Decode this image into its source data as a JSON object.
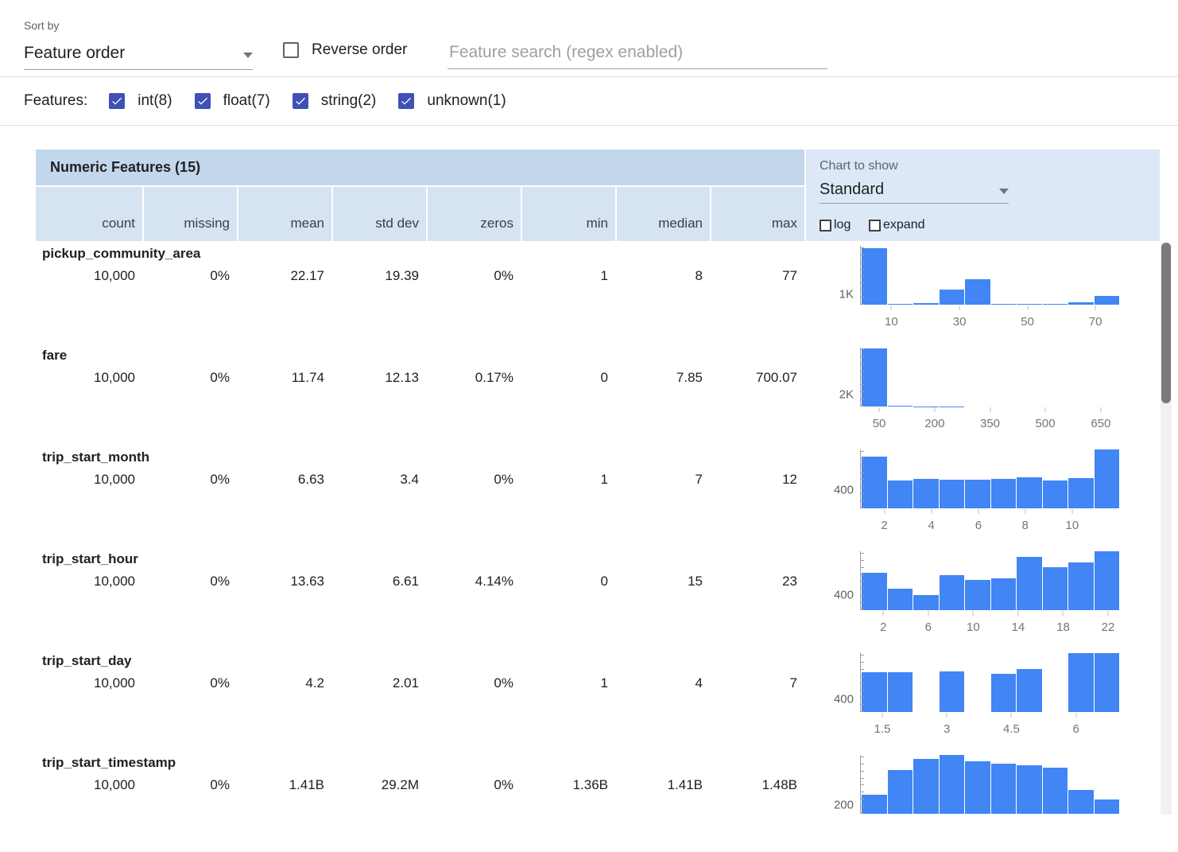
{
  "toolbar": {
    "sort_by_label": "Sort by",
    "sort_value": "Feature order",
    "reverse_label": "Reverse order",
    "search_placeholder": "Feature search (regex enabled)"
  },
  "features_bar": {
    "label": "Features:",
    "checkboxes": [
      {
        "label": "int(8)",
        "checked": true
      },
      {
        "label": "float(7)",
        "checked": true
      },
      {
        "label": "string(2)",
        "checked": true
      },
      {
        "label": "unknown(1)",
        "checked": true
      }
    ]
  },
  "table": {
    "title": "Numeric Features (15)",
    "chart_controls": {
      "label": "Chart to show",
      "value": "Standard",
      "log_label": "log",
      "expand_label": "expand"
    },
    "columns": [
      "count",
      "missing",
      "mean",
      "std dev",
      "zeros",
      "min",
      "median",
      "max"
    ],
    "rows": [
      {
        "name": "pickup_community_area",
        "values": [
          "10,000",
          "0%",
          "22.17",
          "19.39",
          "0%",
          "1",
          "8",
          "77"
        ]
      },
      {
        "name": "fare",
        "values": [
          "10,000",
          "0%",
          "11.74",
          "12.13",
          "0.17%",
          "0",
          "7.85",
          "700.07"
        ]
      },
      {
        "name": "trip_start_month",
        "values": [
          "10,000",
          "0%",
          "6.63",
          "3.4",
          "0%",
          "1",
          "7",
          "12"
        ]
      },
      {
        "name": "trip_start_hour",
        "values": [
          "10,000",
          "0%",
          "13.63",
          "6.61",
          "4.14%",
          "0",
          "15",
          "23"
        ]
      },
      {
        "name": "trip_start_day",
        "values": [
          "10,000",
          "0%",
          "4.2",
          "2.01",
          "0%",
          "1",
          "4",
          "7"
        ]
      },
      {
        "name": "trip_start_timestamp",
        "values": [
          "10,000",
          "0%",
          "1.41B",
          "29.2M",
          "0%",
          "1.36B",
          "1.41B",
          "1.48B"
        ]
      }
    ]
  },
  "chart_data": [
    {
      "type": "bar",
      "feature": "pickup_community_area",
      "x_range": [
        1,
        77
      ],
      "ymax": 5500,
      "y_gridline": {
        "label": "1K",
        "value": 1000
      },
      "values": [
        5300,
        70,
        140,
        1400,
        2350,
        70,
        40,
        70,
        200,
        790
      ],
      "x_ticks": [
        {
          "label": "10",
          "pct": 11.8
        },
        {
          "label": "30",
          "pct": 38.2
        },
        {
          "label": "50",
          "pct": 64.5
        },
        {
          "label": "70",
          "pct": 90.8
        }
      ]
    },
    {
      "type": "bar",
      "feature": "fare",
      "x_range": [
        0,
        700
      ],
      "ymax": 10000,
      "y_gridline": {
        "label": "2K",
        "value": 2000
      },
      "values": [
        9800,
        120,
        40,
        15,
        10,
        6,
        4,
        3,
        2,
        1
      ],
      "x_ticks": [
        {
          "label": "50",
          "pct": 7.1
        },
        {
          "label": "200",
          "pct": 28.6
        },
        {
          "label": "350",
          "pct": 50
        },
        {
          "label": "500",
          "pct": 71.4
        },
        {
          "label": "650",
          "pct": 92.9
        }
      ]
    },
    {
      "type": "bar",
      "feature": "trip_start_month",
      "x_range": [
        1,
        12
      ],
      "ymax": 1300,
      "y_gridline": {
        "label": "400",
        "value": 400
      },
      "values": [
        1150,
        620,
        650,
        640,
        640,
        650,
        680,
        620,
        660,
        1300
      ],
      "x_ticks": [
        {
          "label": "2",
          "pct": 9.1
        },
        {
          "label": "4",
          "pct": 27.3
        },
        {
          "label": "6",
          "pct": 45.5
        },
        {
          "label": "8",
          "pct": 63.6
        },
        {
          "label": "10",
          "pct": 81.8
        }
      ]
    },
    {
      "type": "bar",
      "feature": "trip_start_hour",
      "x_range": [
        0,
        23
      ],
      "ymax": 1530,
      "y_gridline": {
        "label": "400",
        "value": 400
      },
      "values": [
        980,
        560,
        390,
        920,
        780,
        830,
        1390,
        1120,
        1250,
        1530
      ],
      "x_ticks": [
        {
          "label": "2",
          "pct": 8.7
        },
        {
          "label": "6",
          "pct": 26.1
        },
        {
          "label": "10",
          "pct": 43.5
        },
        {
          "label": "14",
          "pct": 60.9
        },
        {
          "label": "18",
          "pct": 78.3
        },
        {
          "label": "22",
          "pct": 95.7
        }
      ]
    },
    {
      "type": "bar",
      "feature": "trip_start_day",
      "x_range": [
        1,
        7
      ],
      "ymax": 1850,
      "y_gridline": {
        "label": "400",
        "value": 400
      },
      "values": [
        1240,
        1240,
        0,
        1280,
        0,
        1210,
        1340,
        0,
        1850,
        1840
      ],
      "x_ticks": [
        {
          "label": "1.5",
          "pct": 8.3
        },
        {
          "label": "3",
          "pct": 33.3
        },
        {
          "label": "4.5",
          "pct": 58.3
        },
        {
          "label": "6",
          "pct": 83.3
        }
      ]
    },
    {
      "type": "bar",
      "feature": "trip_start_timestamp",
      "x_range": null,
      "ymax": 1400,
      "y_gridline": {
        "label": "200",
        "value": 200
      },
      "values": [
        450,
        1050,
        1300,
        1400,
        1250,
        1200,
        1150,
        1100,
        575,
        350
      ],
      "x_ticks": []
    }
  ]
}
